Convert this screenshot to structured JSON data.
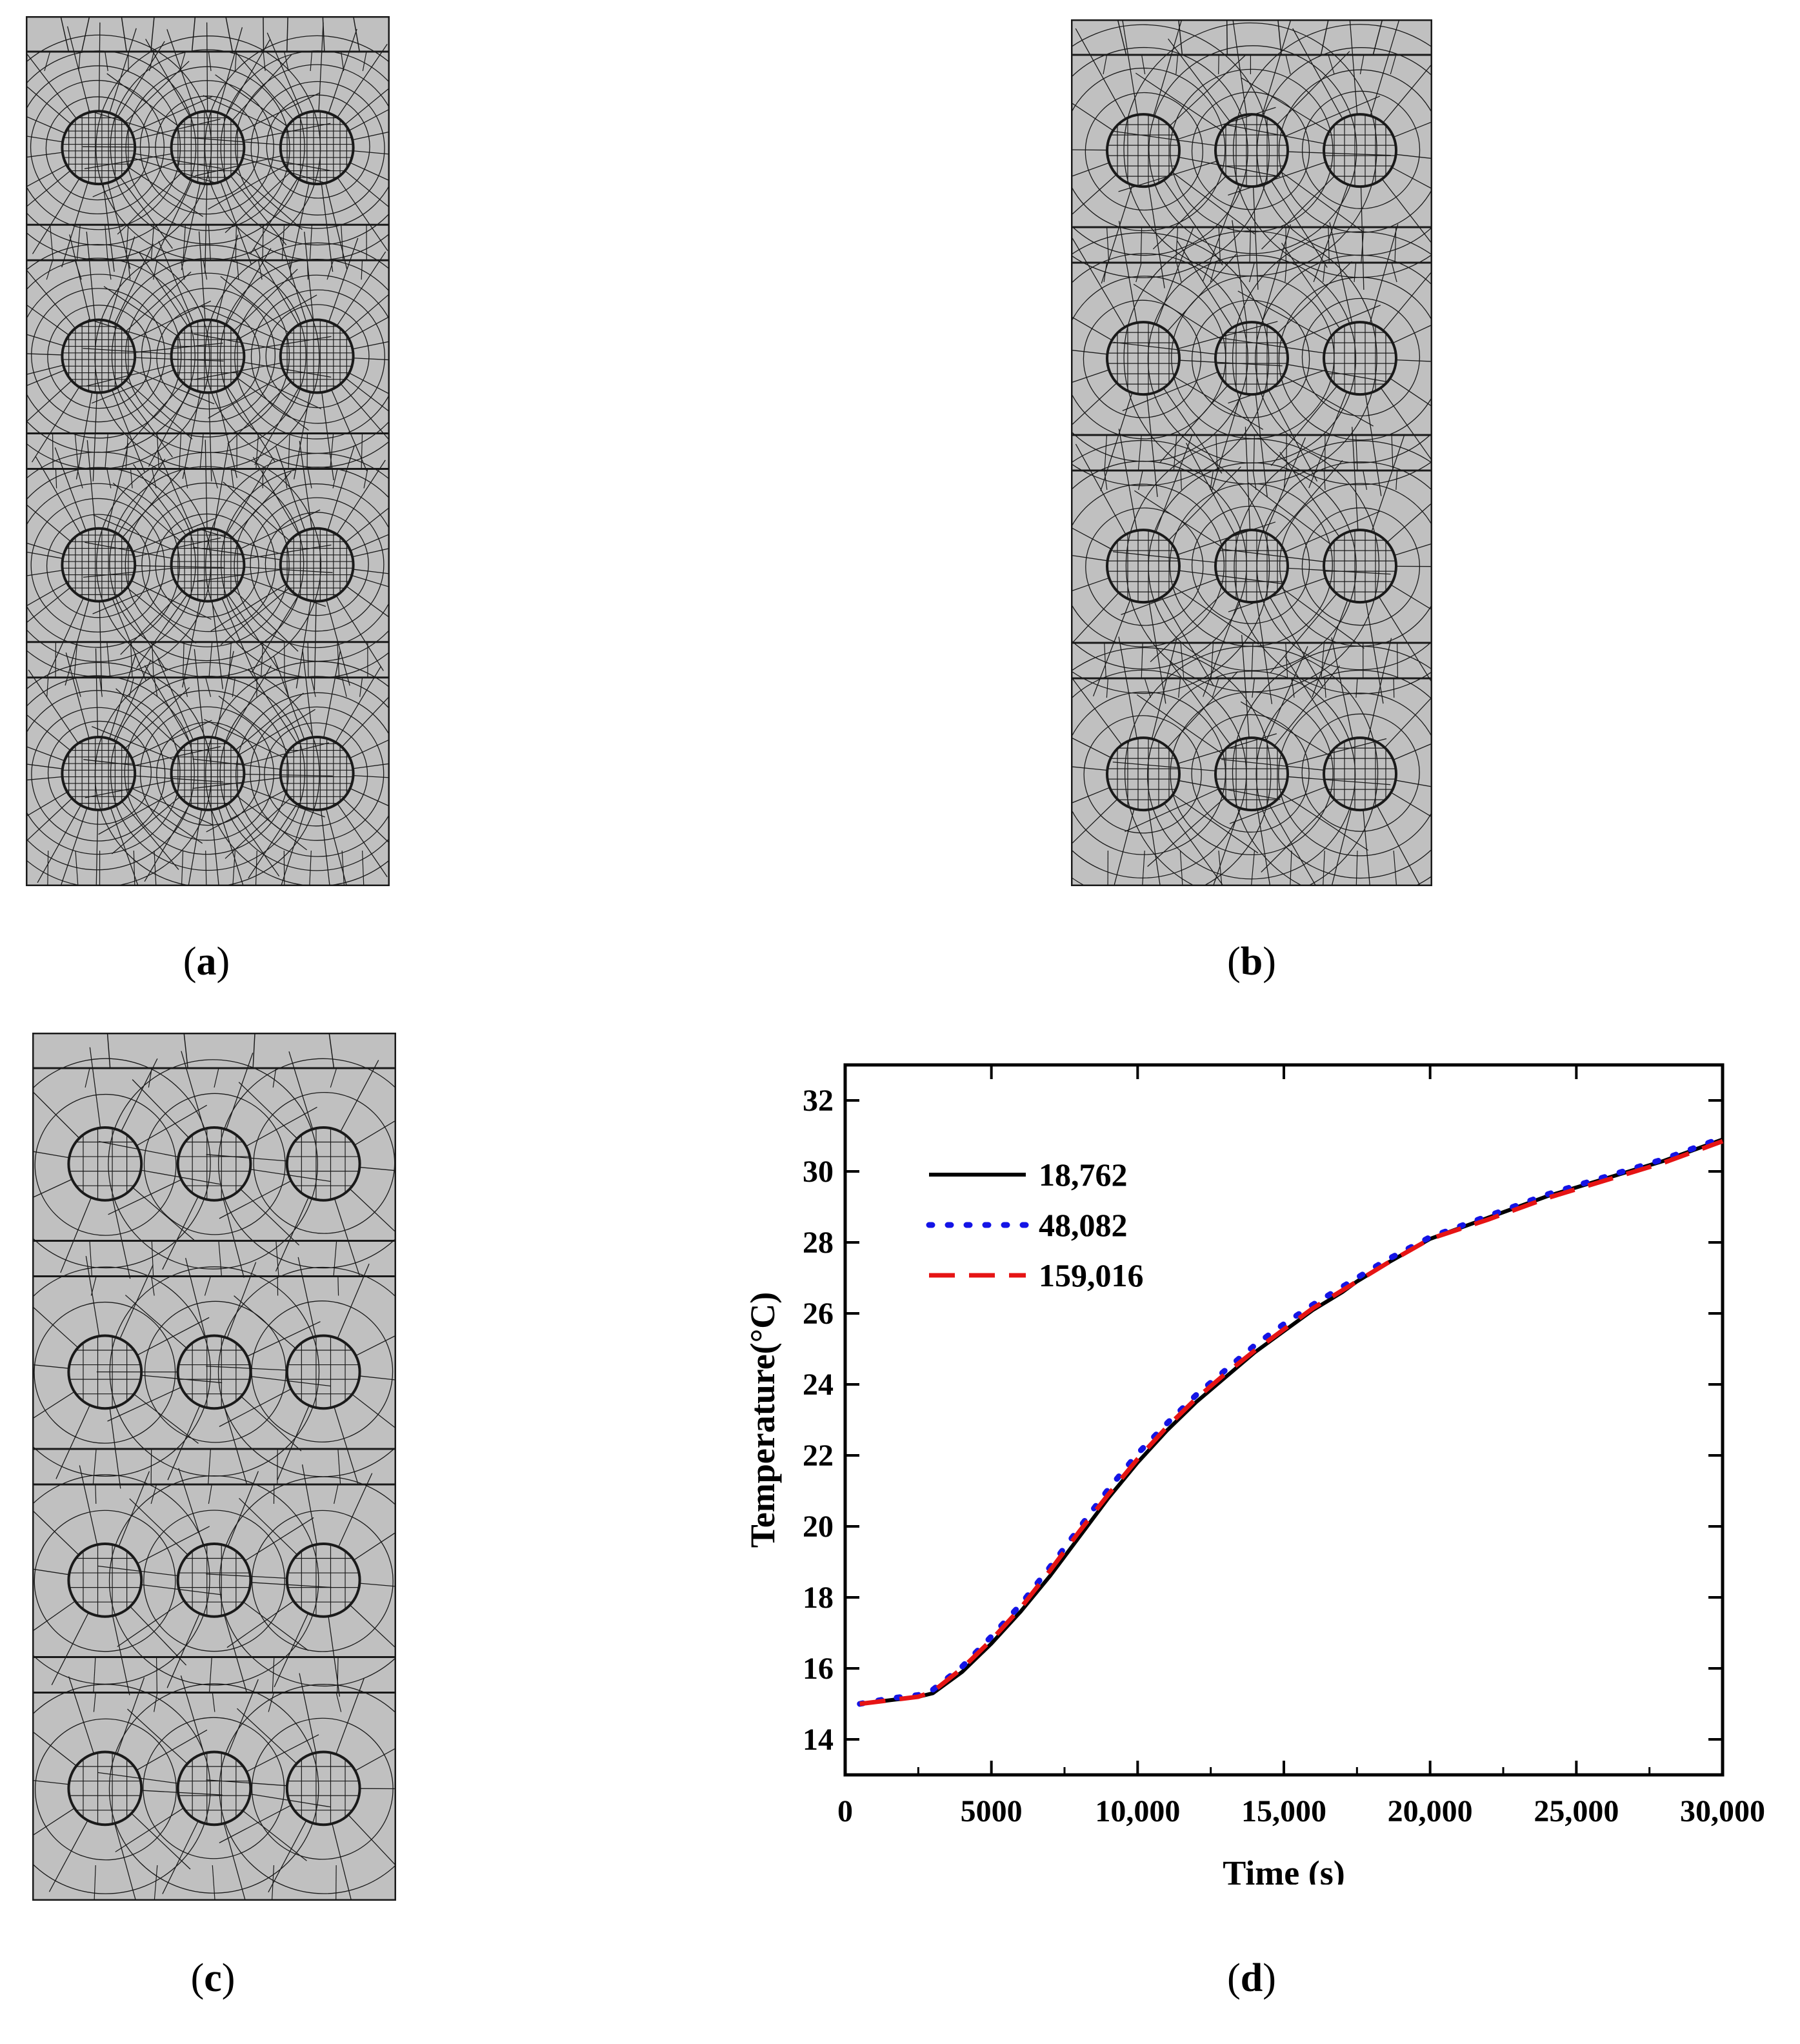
{
  "panels": [
    {
      "label": "a",
      "element_count": 159016
    },
    {
      "label": "b",
      "element_count": 48082
    },
    {
      "label": "c",
      "element_count": 18762
    },
    {
      "label": "d"
    }
  ],
  "colors": {
    "mesh_fill": "#c0c0c0",
    "mesh_line": "#1a1a1a",
    "series_black": "#000000",
    "series_blue": "#1414e6",
    "series_red": "#e61414"
  },
  "chart_data": {
    "type": "line",
    "title": "",
    "xlabel": "Time (s)",
    "ylabel": "Temperature(°C)",
    "xlim": [
      0,
      30000
    ],
    "ylim": [
      13,
      33
    ],
    "xticks": [
      0,
      5000,
      10000,
      15000,
      20000,
      25000,
      30000
    ],
    "xtick_labels": [
      "0",
      "5000",
      "10,000",
      "15,000",
      "20,000",
      "25,000",
      "30,000"
    ],
    "yticks": [
      14,
      16,
      18,
      20,
      22,
      24,
      26,
      28,
      30,
      32
    ],
    "ytick_labels": [
      "14",
      "16",
      "18",
      "20",
      "22",
      "24",
      "26",
      "28",
      "30",
      "32"
    ],
    "legend_position": "top-left",
    "series": [
      {
        "name": "18,762",
        "style": "solid",
        "x": [
          500,
          1500,
          2500,
          3000,
          4000,
          5000,
          6000,
          7000,
          8000,
          9000,
          10000,
          11000,
          12000,
          13000,
          14000,
          15000,
          16000,
          17000,
          17500,
          18500,
          20000,
          22000,
          24000,
          26000,
          28000,
          30000
        ],
        "y": [
          15.0,
          15.1,
          15.2,
          15.3,
          15.9,
          16.7,
          17.6,
          18.6,
          19.7,
          20.8,
          21.8,
          22.7,
          23.5,
          24.2,
          24.9,
          25.5,
          26.1,
          26.6,
          26.9,
          27.4,
          28.1,
          28.7,
          29.3,
          29.8,
          30.3,
          30.9
        ]
      },
      {
        "name": "48,082",
        "style": "dotted",
        "x": [
          500,
          1500,
          2500,
          3000,
          4000,
          5000,
          6000,
          7000,
          8000,
          9000,
          10000,
          11000,
          12000,
          13000,
          14000,
          15000,
          16000,
          17000,
          17500,
          18500,
          20000,
          22000,
          24000,
          26000,
          28000,
          30000
        ],
        "y": [
          15.0,
          15.15,
          15.25,
          15.4,
          16.05,
          16.9,
          17.8,
          18.85,
          19.95,
          21.05,
          22.05,
          22.9,
          23.7,
          24.4,
          25.1,
          25.7,
          26.25,
          26.75,
          27.0,
          27.5,
          28.15,
          28.75,
          29.35,
          29.85,
          30.35,
          30.95
        ]
      },
      {
        "name": "159,016",
        "style": "dashed",
        "x": [
          500,
          1500,
          2500,
          3000,
          4000,
          5000,
          6000,
          7000,
          8000,
          9000,
          10000,
          11000,
          12000,
          13000,
          14000,
          15000,
          16000,
          17000,
          17500,
          18500,
          20000,
          22000,
          24000,
          26000,
          28000,
          30000
        ],
        "y": [
          15.0,
          15.1,
          15.2,
          15.35,
          16.0,
          16.8,
          17.7,
          18.75,
          19.85,
          20.9,
          21.9,
          22.8,
          23.6,
          24.3,
          24.95,
          25.55,
          26.15,
          26.65,
          26.9,
          27.4,
          28.1,
          28.65,
          29.25,
          29.75,
          30.25,
          30.85
        ]
      }
    ]
  }
}
